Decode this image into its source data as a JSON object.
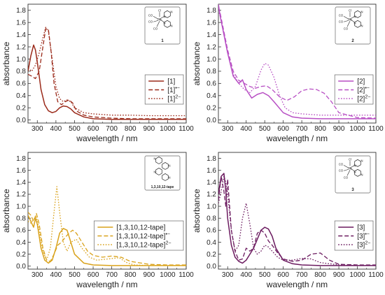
{
  "chart_data": [
    {
      "type": "line",
      "xlabel": "wavelength / nm",
      "ylabel": "absorbance",
      "xlim": [
        250,
        1100
      ],
      "ylim": [
        -0.05,
        1.9
      ],
      "xticks": [
        300,
        400,
        500,
        600,
        700,
        800,
        900,
        1000,
        1100
      ],
      "yticks": [
        0.0,
        0.2,
        0.4,
        0.6,
        0.8,
        1.0,
        1.2,
        1.4,
        1.6,
        1.8
      ],
      "legend_position": "bottom-right",
      "structure_label": "1",
      "structure_atoms": [
        "Re",
        "CO",
        "CO",
        "CO",
        "Cl",
        "N",
        "N",
        "N",
        "N"
      ],
      "colors": [
        "#9b2a1a",
        "#9b2a1a",
        "#9b2a1a"
      ],
      "series": [
        {
          "name": "[1]",
          "name_sup": "",
          "dash": "solid",
          "x": [
            250,
            265,
            280,
            290,
            300,
            320,
            340,
            360,
            380,
            400,
            420,
            440,
            460,
            480,
            500,
            550,
            600,
            700,
            800,
            900,
            1000,
            1100
          ],
          "y": [
            0.8,
            1.05,
            1.23,
            1.15,
            0.95,
            0.5,
            0.25,
            0.15,
            0.12,
            0.14,
            0.2,
            0.23,
            0.22,
            0.18,
            0.12,
            0.05,
            0.02,
            0.01,
            0.01,
            0.01,
            0.01,
            0.01
          ]
        },
        {
          "name": "[1]",
          "name_sup": "•−",
          "dash": "dashed",
          "x": [
            250,
            270,
            290,
            310,
            330,
            345,
            360,
            375,
            390,
            410,
            430,
            450,
            470,
            490,
            510,
            550,
            600,
            700,
            800,
            900,
            1000,
            1100
          ],
          "y": [
            0.75,
            0.72,
            0.68,
            0.8,
            1.2,
            1.5,
            1.48,
            1.1,
            0.6,
            0.3,
            0.25,
            0.3,
            0.33,
            0.28,
            0.15,
            0.08,
            0.05,
            0.03,
            0.02,
            0.02,
            0.02,
            0.02
          ]
        },
        {
          "name": "[1]",
          "name_sup": "2−",
          "dash": "dotted",
          "x": [
            250,
            270,
            290,
            310,
            330,
            345,
            360,
            380,
            400,
            420,
            440,
            460,
            480,
            500,
            550,
            600,
            700,
            800,
            900,
            1000,
            1100
          ],
          "y": [
            0.85,
            0.8,
            0.9,
            1.1,
            1.35,
            1.52,
            1.45,
            1.0,
            0.55,
            0.35,
            0.3,
            0.33,
            0.3,
            0.2,
            0.12,
            0.1,
            0.08,
            0.08,
            0.07,
            0.07,
            0.07
          ]
        }
      ]
    },
    {
      "type": "line",
      "xlabel": "wavelength / nm",
      "ylabel": "absorbance",
      "xlim": [
        250,
        1100
      ],
      "ylim": [
        -0.05,
        1.9
      ],
      "xticks": [
        300,
        400,
        500,
        600,
        700,
        800,
        900,
        1000,
        1100
      ],
      "yticks": [
        0.0,
        0.2,
        0.4,
        0.6,
        0.8,
        1.0,
        1.2,
        1.4,
        1.6,
        1.8
      ],
      "legend_position": "bottom-right",
      "structure_label": "2",
      "structure_atoms": [
        "Re",
        "CO",
        "CO",
        "CO",
        "Cl",
        "N",
        "N",
        "N",
        "N"
      ],
      "colors": [
        "#b84fc4",
        "#b84fc4",
        "#b84fc4"
      ],
      "series": [
        {
          "name": "[2]",
          "name_sup": "",
          "dash": "solid",
          "x": [
            250,
            260,
            280,
            300,
            330,
            360,
            380,
            400,
            430,
            460,
            490,
            520,
            550,
            600,
            650,
            700,
            800,
            900,
            1000,
            1100
          ],
          "y": [
            1.9,
            1.7,
            1.4,
            1.1,
            0.72,
            0.6,
            0.66,
            0.5,
            0.36,
            0.42,
            0.45,
            0.4,
            0.3,
            0.12,
            0.05,
            0.03,
            0.02,
            0.02,
            0.02,
            0.02
          ]
        },
        {
          "name": "[2]",
          "name_sup": "•−",
          "dash": "dashed",
          "x": [
            250,
            260,
            280,
            300,
            330,
            360,
            390,
            420,
            450,
            480,
            510,
            540,
            580,
            620,
            660,
            700,
            740,
            780,
            820,
            860,
            900,
            1000,
            1100
          ],
          "y": [
            1.85,
            1.75,
            1.45,
            1.15,
            0.8,
            0.65,
            0.6,
            0.55,
            0.52,
            0.55,
            0.56,
            0.5,
            0.38,
            0.32,
            0.38,
            0.48,
            0.51,
            0.5,
            0.44,
            0.3,
            0.12,
            0.04,
            0.03
          ]
        },
        {
          "name": "[2]",
          "name_sup": "2−",
          "dash": "dotted",
          "x": [
            250,
            260,
            280,
            300,
            330,
            360,
            390,
            420,
            450,
            480,
            500,
            520,
            550,
            580,
            610,
            650,
            700,
            800,
            900,
            1000,
            1100
          ],
          "y": [
            1.8,
            1.7,
            1.42,
            1.1,
            0.75,
            0.6,
            0.5,
            0.45,
            0.55,
            0.82,
            0.93,
            0.9,
            0.7,
            0.4,
            0.2,
            0.12,
            0.1,
            0.08,
            0.08,
            0.08,
            0.08
          ]
        }
      ]
    },
    {
      "type": "line",
      "xlabel": "wavelength / nm",
      "ylabel": "absorbance",
      "xlim": [
        250,
        1100
      ],
      "ylim": [
        -0.05,
        1.9
      ],
      "xticks": [
        300,
        400,
        500,
        600,
        700,
        800,
        900,
        1000,
        1100
      ],
      "yticks": [
        0.0,
        0.2,
        0.4,
        0.6,
        0.8,
        1.0,
        1.2,
        1.4,
        1.6,
        1.8
      ],
      "legend_position": "bottom-right",
      "structure_label": "1,3,10,12-tape",
      "structure_atoms": [
        "N",
        "N",
        "N",
        "N"
      ],
      "colors": [
        "#d9a21b",
        "#d9a21b",
        "#d9a21b"
      ],
      "series": [
        {
          "name": "[1,3,10,12-tape]",
          "name_sup": "",
          "dash": "solid",
          "x": [
            250,
            265,
            280,
            290,
            300,
            320,
            340,
            360,
            380,
            400,
            420,
            440,
            460,
            480,
            500,
            550,
            600,
            700,
            800,
            900,
            1000,
            1100
          ],
          "y": [
            0.85,
            0.75,
            0.65,
            0.8,
            0.7,
            0.3,
            0.1,
            0.05,
            0.1,
            0.3,
            0.55,
            0.63,
            0.6,
            0.4,
            0.2,
            0.05,
            0.02,
            0.01,
            0.01,
            0.01,
            0.01,
            0.01
          ]
        },
        {
          "name": "[1,3,10,12-tape]",
          "name_sup": "•−",
          "dash": "dashed",
          "x": [
            250,
            265,
            280,
            295,
            310,
            330,
            350,
            370,
            390,
            410,
            430,
            450,
            470,
            490,
            510,
            540,
            570,
            600,
            650,
            700,
            750,
            800,
            900,
            1000,
            1100
          ],
          "y": [
            0.9,
            0.85,
            0.75,
            0.88,
            0.7,
            0.3,
            0.1,
            0.08,
            0.2,
            0.35,
            0.4,
            0.48,
            0.55,
            0.6,
            0.55,
            0.4,
            0.25,
            0.18,
            0.15,
            0.17,
            0.15,
            0.08,
            0.03,
            0.02,
            0.02
          ]
        },
        {
          "name": "[1,3,10,12-tape]",
          "name_sup": "2−",
          "dash": "dotted",
          "x": [
            250,
            265,
            280,
            295,
            310,
            330,
            350,
            370,
            390,
            405,
            420,
            440,
            460,
            480,
            510,
            540,
            580,
            620,
            680,
            740,
            780,
            820,
            900,
            1000,
            1100
          ],
          "y": [
            0.75,
            0.72,
            0.78,
            0.82,
            0.6,
            0.25,
            0.1,
            0.3,
            0.9,
            1.33,
            0.9,
            0.4,
            0.25,
            0.4,
            0.45,
            0.3,
            0.15,
            0.1,
            0.12,
            0.14,
            0.06,
            0.02,
            0.01,
            0.01,
            0.01
          ]
        }
      ]
    },
    {
      "type": "line",
      "xlabel": "wavelength / nm",
      "ylabel": "absorbance",
      "xlim": [
        250,
        1100
      ],
      "ylim": [
        -0.05,
        1.9
      ],
      "xticks": [
        300,
        400,
        500,
        600,
        700,
        800,
        900,
        1000,
        1100
      ],
      "yticks": [
        0.0,
        0.2,
        0.4,
        0.6,
        0.8,
        1.0,
        1.2,
        1.4,
        1.6,
        1.8
      ],
      "legend_position": "bottom-right",
      "structure_label": "3",
      "structure_atoms": [
        "Re",
        "CO",
        "CO",
        "CO",
        "Cl",
        "N",
        "N",
        "N",
        "N"
      ],
      "colors": [
        "#6b1a5f",
        "#6b1a5f",
        "#6b1a5f"
      ],
      "series": [
        {
          "name": "[3]",
          "name_sup": "",
          "dash": "solid",
          "x": [
            250,
            265,
            280,
            290,
            300,
            320,
            340,
            360,
            380,
            400,
            420,
            440,
            460,
            480,
            500,
            520,
            540,
            560,
            600,
            650,
            700,
            800,
            900,
            1000,
            1100
          ],
          "y": [
            1.2,
            1.5,
            1.55,
            1.25,
            0.8,
            0.35,
            0.15,
            0.08,
            0.05,
            0.1,
            0.2,
            0.3,
            0.45,
            0.6,
            0.65,
            0.62,
            0.5,
            0.3,
            0.1,
            0.04,
            0.02,
            0.01,
            0.01,
            0.01,
            0.01
          ]
        },
        {
          "name": "[3]",
          "name_sup": "•−",
          "dash": "dashed",
          "x": [
            250,
            265,
            280,
            290,
            300,
            320,
            340,
            360,
            380,
            400,
            420,
            440,
            460,
            480,
            500,
            520,
            540,
            570,
            600,
            650,
            700,
            750,
            800,
            850,
            900,
            1000,
            1100
          ],
          "y": [
            1.1,
            1.5,
            1.25,
            1.0,
            1.45,
            0.6,
            0.25,
            0.1,
            0.12,
            0.3,
            0.25,
            0.3,
            0.55,
            0.6,
            0.55,
            0.42,
            0.35,
            0.22,
            0.12,
            0.08,
            0.1,
            0.2,
            0.22,
            0.1,
            0.03,
            0.02,
            0.02
          ]
        },
        {
          "name": "[3]",
          "name_sup": "2−",
          "dash": "dotted",
          "x": [
            250,
            265,
            280,
            290,
            300,
            320,
            340,
            360,
            380,
            400,
            420,
            440,
            460,
            480,
            500,
            520,
            540,
            570,
            600,
            650,
            700,
            750,
            800,
            900,
            1000,
            1100
          ],
          "y": [
            1.05,
            1.25,
            1.5,
            1.4,
            1.2,
            0.6,
            0.25,
            0.35,
            0.8,
            1.05,
            0.7,
            0.3,
            0.2,
            0.25,
            0.35,
            0.32,
            0.25,
            0.15,
            0.1,
            0.1,
            0.13,
            0.12,
            0.06,
            0.02,
            0.01,
            0.01
          ]
        }
      ]
    }
  ]
}
